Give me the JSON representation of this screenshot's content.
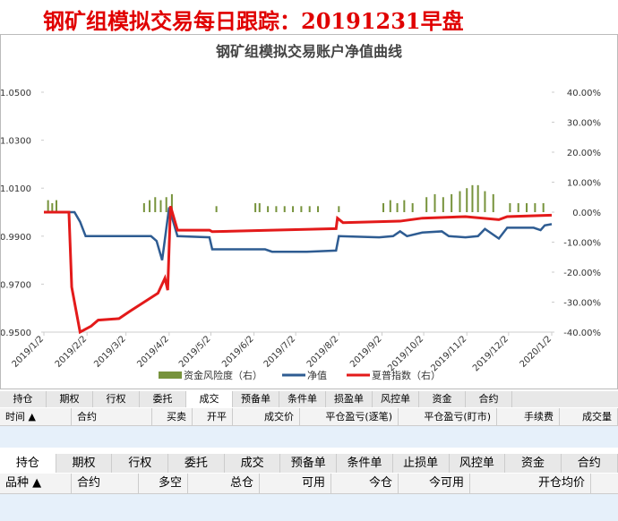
{
  "header": {
    "title": "钢矿组模拟交易每日跟踪：20191231早盘"
  },
  "chart_data": {
    "type": "line",
    "title": "钢矿组模拟交易账户净值曲线",
    "xlim": [
      "2019/1/2",
      "2020/1/2"
    ],
    "xticks": [
      "2019/1/2",
      "2019/2/2",
      "2019/3/2",
      "2019/4/2",
      "2019/5/2",
      "2019/6/2",
      "2019/7/2",
      "2019/8/2",
      "2019/9/2",
      "2019/10/2",
      "2019/11/2",
      "2019/12/2",
      "2020/1/2"
    ],
    "ylim": [
      0.95,
      1.05
    ],
    "yticks": [
      {
        "value": 0.95,
        "label": "0.9500"
      },
      {
        "value": 0.97,
        "label": "0.9700"
      },
      {
        "value": 0.99,
        "label": "0.9900"
      },
      {
        "value": 1.01,
        "label": "1.0100"
      },
      {
        "value": 1.03,
        "label": "1.0300"
      },
      {
        "value": 1.05,
        "label": "1.0500"
      }
    ],
    "y2lim": [
      -40,
      40
    ],
    "y2ticks": [
      {
        "value": -40,
        "label": "-40.00%"
      },
      {
        "value": -30,
        "label": "-30.00%"
      },
      {
        "value": -20,
        "label": "-20.00%"
      },
      {
        "value": -10,
        "label": "-10.00%"
      },
      {
        "value": 0,
        "label": "0.00%"
      },
      {
        "value": 10,
        "label": "10.00%"
      },
      {
        "value": 20,
        "label": "20.00%"
      },
      {
        "value": 30,
        "label": "30.00%"
      },
      {
        "value": 40,
        "label": "40.00%"
      }
    ],
    "series": [
      {
        "name": "资金风险度（右）",
        "type": "bar",
        "axis": "y2",
        "color": "#77933c",
        "x": [
          "2019/1/5",
          "2019/1/8",
          "2019/1/11",
          "2019/3/15",
          "2019/3/19",
          "2019/3/23",
          "2019/3/27",
          "2019/3/31",
          "2019/4/4",
          "2019/5/6",
          "2019/6/3",
          "2019/6/6",
          "2019/6/12",
          "2019/6/18",
          "2019/6/24",
          "2019/6/30",
          "2019/7/6",
          "2019/7/12",
          "2019/7/18",
          "2019/8/2",
          "2019/9/3",
          "2019/9/8",
          "2019/9/13",
          "2019/9/18",
          "2019/9/24",
          "2019/10/4",
          "2019/10/10",
          "2019/10/16",
          "2019/10/22",
          "2019/10/28",
          "2019/11/2",
          "2019/11/6",
          "2019/11/10",
          "2019/11/15",
          "2019/11/21",
          "2019/12/3",
          "2019/12/9",
          "2019/12/15",
          "2019/12/21",
          "2019/12/27"
        ],
        "values": [
          4,
          3,
          4,
          3,
          4,
          5,
          4,
          5,
          6,
          2,
          3,
          3,
          2,
          2,
          2,
          2,
          2,
          2,
          2,
          2,
          3,
          4,
          3,
          4,
          3,
          5,
          6,
          5,
          6,
          7,
          8,
          9,
          9,
          7,
          6,
          3,
          3,
          3,
          3,
          3
        ]
      },
      {
        "name": "净值",
        "axis": "y",
        "color": "#2e5c92",
        "x": [
          "2019/1/2",
          "2019/1/24",
          "2019/1/28",
          "2019/2/1",
          "2019/3/20",
          "2019/3/24",
          "2019/3/28",
          "2019/4/2",
          "2019/4/8",
          "2019/5/1",
          "2019/5/3",
          "2019/6/10",
          "2019/6/15",
          "2019/7/10",
          "2019/7/31",
          "2019/8/2",
          "2019/8/31",
          "2019/9/10",
          "2019/9/15",
          "2019/9/20",
          "2019/10/1",
          "2019/10/15",
          "2019/10/20",
          "2019/11/1",
          "2019/11/10",
          "2019/11/15",
          "2019/11/25",
          "2019/12/1",
          "2019/12/20",
          "2019/12/25",
          "2019/12/28",
          "2020/1/2"
        ],
        "values": [
          1.0,
          1.0,
          0.996,
          0.99,
          0.99,
          0.988,
          0.98,
          1.002,
          0.99,
          0.9895,
          0.9845,
          0.9845,
          0.9835,
          0.9835,
          0.984,
          0.99,
          0.9895,
          0.99,
          0.992,
          0.99,
          0.9915,
          0.992,
          0.99,
          0.9895,
          0.99,
          0.993,
          0.989,
          0.9935,
          0.9935,
          0.9925,
          0.9945,
          0.995
        ]
      },
      {
        "name": "夏普指数（右）",
        "axis": "y2",
        "color": "#e31a1a",
        "x": [
          "2019/1/2",
          "2019/1/20",
          "2019/1/22",
          "2019/1/28",
          "2019/2/5",
          "2019/2/10",
          "2019/2/25",
          "2019/3/5",
          "2019/3/15",
          "2019/3/25",
          "2019/3/30",
          "2019/4/1",
          "2019/4/3",
          "2019/4/8",
          "2019/5/1",
          "2019/5/3",
          "2019/6/15",
          "2019/7/31",
          "2019/8/1",
          "2019/8/5",
          "2019/9/15",
          "2019/10/1",
          "2019/11/1",
          "2019/11/25",
          "2019/12/1",
          "2020/1/2"
        ],
        "values": [
          0,
          0,
          -25,
          -40,
          -38,
          -36,
          -35.5,
          -33,
          -30,
          -27,
          -22,
          -26,
          2,
          -6,
          -6,
          -6.5,
          -6,
          -5.5,
          -2,
          -3.5,
          -3,
          -2,
          -1.5,
          -2.5,
          -1.5,
          -1
        ]
      }
    ]
  },
  "panels": [
    {
      "tabs": [
        "持仓",
        "期权",
        "行权",
        "委托",
        "成交",
        "预备单",
        "条件单",
        "损盈单",
        "风控单",
        "资金",
        "合约"
      ],
      "columns": [
        "时间 ▲",
        "合约",
        "买卖",
        "开平",
        "成交价",
        "平仓盈亏(逐笔)",
        "平仓盈亏(盯市)",
        "手续费",
        "成交量"
      ]
    },
    {
      "tabs": [
        "持仓",
        "期权",
        "行权",
        "委托",
        "成交",
        "预备单",
        "条件单",
        "止损单",
        "风控单",
        "资金",
        "合约"
      ],
      "columns": [
        "品种 ▲",
        "合约",
        "多空",
        "总仓",
        "可用",
        "今仓",
        "今可用",
        "开仓均价"
      ]
    }
  ]
}
